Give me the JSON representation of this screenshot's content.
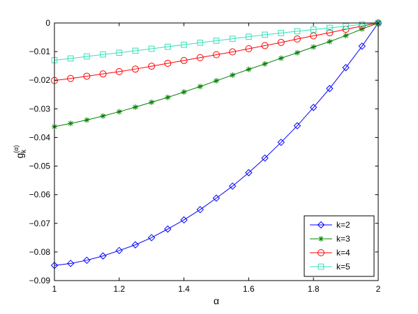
{
  "chart_data": {
    "type": "line",
    "xlabel": "α",
    "ylabel": {
      "base": "g",
      "sub": "k",
      "sup": "(α)"
    },
    "xlim": [
      1,
      2
    ],
    "ylim": [
      -0.09,
      0
    ],
    "xticks": [
      1,
      1.2,
      1.4,
      1.6,
      1.8,
      2
    ],
    "xtick_labels": [
      "1",
      "1.2",
      "1.4",
      "1.6",
      "1.8",
      "2"
    ],
    "yticks": [
      0,
      -0.01,
      -0.02,
      -0.03,
      -0.04,
      -0.05,
      -0.06,
      -0.07,
      -0.08,
      -0.09
    ],
    "ytick_labels": [
      "0",
      "−0.01",
      "−0.02",
      "−0.03",
      "−0.04",
      "−0.05",
      "−0.06",
      "−0.07",
      "−0.08",
      "−0.09"
    ],
    "grid": false,
    "legend_position": "bottom-right",
    "x": [
      1,
      1.05,
      1.1,
      1.15,
      1.2,
      1.25,
      1.3,
      1.35,
      1.4,
      1.45,
      1.5,
      1.55,
      1.6,
      1.65,
      1.7,
      1.75,
      1.8,
      1.85,
      1.9,
      1.95,
      2
    ],
    "series": [
      {
        "name": "k=2",
        "color": "#0000ff",
        "marker": "diamond",
        "values": [
          -0.0847,
          -0.084,
          -0.0829,
          -0.0814,
          -0.0795,
          -0.0775,
          -0.075,
          -0.072,
          -0.0688,
          -0.0652,
          -0.0612,
          -0.057,
          -0.0523,
          -0.0472,
          -0.0417,
          -0.0359,
          -0.0295,
          -0.0229,
          -0.0156,
          -0.0081,
          0
        ]
      },
      {
        "name": "k=3",
        "color": "#008000",
        "marker": "star",
        "values": [
          -0.0362,
          -0.0351,
          -0.0339,
          -0.0325,
          -0.031,
          -0.0294,
          -0.0277,
          -0.026,
          -0.0241,
          -0.0222,
          -0.0202,
          -0.0182,
          -0.0162,
          -0.0143,
          -0.0123,
          -0.0104,
          -0.0084,
          -0.0065,
          -0.0044,
          -0.0021,
          0
        ]
      },
      {
        "name": "k=4",
        "color": "#ff0000",
        "marker": "circle",
        "values": [
          -0.0201,
          -0.0194,
          -0.0186,
          -0.0178,
          -0.017,
          -0.0161,
          -0.0151,
          -0.0141,
          -0.0131,
          -0.0121,
          -0.0111,
          -0.0101,
          -0.009,
          -0.0079,
          -0.0068,
          -0.0056,
          -0.0045,
          -0.0034,
          -0.0022,
          -0.0011,
          0
        ]
      },
      {
        "name": "k=5",
        "color": "#33e0b8",
        "marker": "square",
        "values": [
          -0.013,
          -0.0124,
          -0.0117,
          -0.011,
          -0.0104,
          -0.0097,
          -0.009,
          -0.0083,
          -0.0076,
          -0.0069,
          -0.0062,
          -0.0055,
          -0.0048,
          -0.0041,
          -0.0035,
          -0.0029,
          -0.0023,
          -0.0017,
          -0.0011,
          -0.0005,
          0
        ]
      }
    ]
  }
}
